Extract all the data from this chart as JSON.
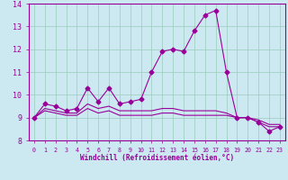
{
  "xlabel": "Windchill (Refroidissement éolien,°C)",
  "background_color": "#cce8f0",
  "line_color": "#990099",
  "x_values": [
    0,
    1,
    2,
    3,
    4,
    5,
    6,
    7,
    8,
    9,
    10,
    11,
    12,
    13,
    14,
    15,
    16,
    17,
    18,
    19,
    20,
    21,
    22,
    23
  ],
  "series": [
    [
      9.0,
      9.6,
      9.5,
      9.3,
      9.4,
      10.3,
      9.7,
      10.3,
      9.6,
      9.7,
      9.8,
      11.0,
      11.9,
      12.0,
      11.9,
      12.8,
      13.5,
      13.7,
      11.0,
      9.0,
      9.0,
      8.8,
      8.4,
      8.6
    ],
    [
      9.0,
      9.4,
      9.3,
      9.2,
      9.2,
      9.6,
      9.4,
      9.5,
      9.3,
      9.3,
      9.3,
      9.3,
      9.4,
      9.4,
      9.3,
      9.3,
      9.3,
      9.3,
      9.2,
      9.0,
      9.0,
      8.9,
      8.7,
      8.7
    ],
    [
      9.0,
      9.3,
      9.2,
      9.1,
      9.1,
      9.4,
      9.2,
      9.3,
      9.1,
      9.1,
      9.1,
      9.1,
      9.2,
      9.2,
      9.1,
      9.1,
      9.1,
      9.1,
      9.1,
      9.0,
      9.0,
      8.8,
      8.6,
      8.6
    ]
  ],
  "ylim": [
    8,
    14
  ],
  "yticks": [
    8,
    9,
    10,
    11,
    12,
    13,
    14
  ],
  "xlim": [
    -0.5,
    23.5
  ],
  "xticks": [
    0,
    1,
    2,
    3,
    4,
    5,
    6,
    7,
    8,
    9,
    10,
    11,
    12,
    13,
    14,
    15,
    16,
    17,
    18,
    19,
    20,
    21,
    22,
    23
  ],
  "marker": "D",
  "marker_size": 2.5,
  "linewidth": 0.8,
  "grid_color": "#99ccbb",
  "tick_color": "#990099",
  "label_color": "#990099",
  "font_family": "monospace",
  "xlabel_fontsize": 5.5,
  "ytick_fontsize": 6,
  "xtick_fontsize": 4.8
}
